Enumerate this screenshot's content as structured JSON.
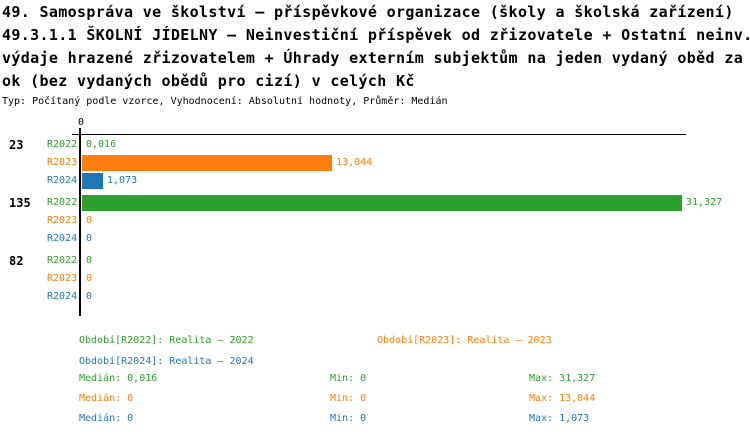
{
  "header": {
    "title_lines": [
      "49. Samospráva ve školství – příspěvkové organizace (školy a školská zařízení)",
      "49.3.1.1 ŠKOLNÍ JÍDELNY – Neinvestiční příspěvek od zřizovatele + Ostatní neinv.",
      "výdaje hrazené zřizovatelem + Úhrady externím subjektům na jeden vydaný oběd za r",
      "ok (bez vydaných obědů pro cizí) v celých Kč"
    ],
    "meta_line": "Typ: Počítaný podle vzorce, Vyhodnocení: Absolutní hodnoty, Průměr: Medián"
  },
  "colors": {
    "r2022": "#2ca02c",
    "r2023": "#ff7f0e",
    "r2024": "#1f77b4",
    "axis": "#000000"
  },
  "chart_data": {
    "type": "bar",
    "orientation": "horizontal",
    "grid": false,
    "axis_zero_label": "0",
    "xlim": [
      0,
      31.327
    ],
    "groups": [
      {
        "label": "23",
        "bars": [
          {
            "series": "R2022",
            "value": 0.016,
            "value_label": "0,016"
          },
          {
            "series": "R2023",
            "value": 13.044,
            "value_label": "13,044"
          },
          {
            "series": "R2024",
            "value": 1.073,
            "value_label": "1,073"
          }
        ]
      },
      {
        "label": "135",
        "bars": [
          {
            "series": "R2022",
            "value": 31.327,
            "value_label": "31,327"
          },
          {
            "series": "R2023",
            "value": 0,
            "value_label": "0"
          },
          {
            "series": "R2024",
            "value": 0,
            "value_label": "0"
          }
        ]
      },
      {
        "label": "82",
        "bars": [
          {
            "series": "R2022",
            "value": 0,
            "value_label": "0"
          },
          {
            "series": "R2023",
            "value": 0,
            "value_label": "0"
          },
          {
            "series": "R2024",
            "value": 0,
            "value_label": "0"
          }
        ]
      }
    ],
    "legend": [
      {
        "series": "R2022",
        "label": "Období[R2022]: Realita – 2022"
      },
      {
        "series": "R2023",
        "label": "Období[R2023]: Realita – 2023"
      },
      {
        "series": "R2024",
        "label": "Období[R2024]: Realita – 2024"
      }
    ],
    "stat_labels": {
      "median": "Medián",
      "min": "Min",
      "max": "Max"
    },
    "stats": [
      {
        "series": "R2022",
        "median": "0,016",
        "min": "0",
        "max": "31,327"
      },
      {
        "series": "R2023",
        "median": "0",
        "min": "0",
        "max": "13,044"
      },
      {
        "series": "R2024",
        "median": "0",
        "min": "0",
        "max": "1,073"
      }
    ]
  }
}
